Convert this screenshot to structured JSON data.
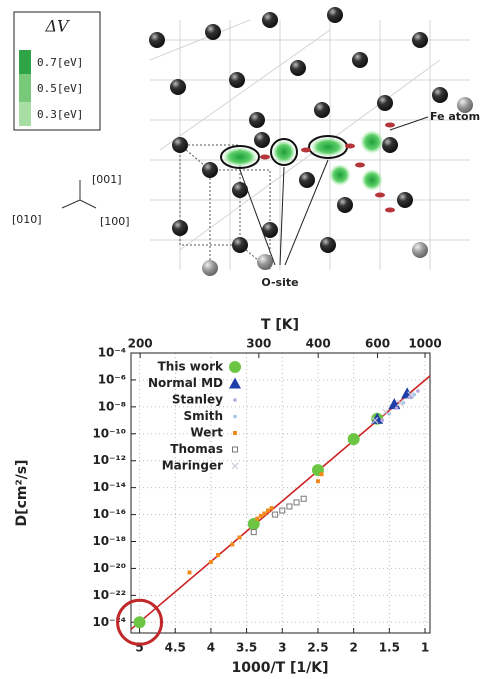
{
  "illustration": {
    "legend_title": "ΔV",
    "legend_labels": [
      "0.7[eV]",
      "0.5[eV]",
      "0.3[eV]"
    ],
    "axis_labels": [
      "[001]",
      "[010]",
      "[100]"
    ],
    "fe_label": "Fe atom",
    "o_label": "O-site"
  },
  "chart_data": {
    "type": "scatter",
    "x_label": "1000/T [1/K]",
    "x2_label": "T [K]",
    "y_label": "D[cm²/s]",
    "xlim": [
      5.12,
      0.93
    ],
    "xticks": [
      5,
      4.5,
      4,
      3.5,
      3,
      2.5,
      2,
      1.5,
      1
    ],
    "x2lim": [
      195,
      1075
    ],
    "x2ticks": [
      200,
      300,
      400,
      600,
      1000
    ],
    "x2scale": "reciprocal",
    "ylim": [
      1.6e-25,
      0.0001
    ],
    "yscale": "log",
    "yticks": [
      {
        "value": 0.0001,
        "label": "10⁻⁴"
      },
      {
        "value": 1e-06,
        "label": "10⁻⁶"
      },
      {
        "value": 1e-08,
        "label": "10⁻⁸"
      },
      {
        "value": 1e-10,
        "label": "10⁻¹⁰"
      },
      {
        "value": 1e-12,
        "label": "10⁻¹²"
      },
      {
        "value": 1e-14,
        "label": "10⁻¹⁴"
      },
      {
        "value": 1e-16,
        "label": "10⁻¹⁶"
      },
      {
        "value": 1e-18,
        "label": "10⁻¹⁸"
      },
      {
        "value": 1e-20,
        "label": "10⁻²⁰"
      },
      {
        "value": 1e-22,
        "label": "10⁻²²"
      },
      {
        "value": 1e-24,
        "label": "10⁻²⁴"
      }
    ],
    "grid": true,
    "legend": "upper left",
    "series": [
      {
        "name": "This work",
        "color": "#6cc644",
        "marker": "circle",
        "x": [
          5,
          3.4,
          2.5,
          2,
          1.67
        ],
        "values": [
          1e-24,
          2e-17,
          2e-13,
          4e-11,
          1.3e-09
        ]
      },
      {
        "name": "Normal MD",
        "color": "#1f3fa8",
        "marker": "triangle",
        "x": [
          1.67,
          1.43,
          1.25
        ],
        "values": [
          1.3e-09,
          1.6e-08,
          1e-07
        ]
      },
      {
        "name": "Stanley",
        "color": "#b9a8e0",
        "marker": "dot",
        "x": [
          1.6,
          1.4,
          1.2,
          1.1
        ],
        "values": [
          1e-09,
          8e-09,
          5e-08,
          1.5e-07
        ]
      },
      {
        "name": "Smith",
        "color": "#a6c8e6",
        "marker": "dot",
        "x": [
          1.5,
          1.3,
          1.15
        ],
        "values": [
          3e-09,
          2e-08,
          8e-08
        ]
      },
      {
        "name": "Wert",
        "color": "#f08a1c",
        "marker": "square",
        "x": [
          4.3,
          4.0,
          3.9,
          3.7,
          3.6,
          3.35,
          3.3,
          3.25,
          3.2,
          3.15,
          2.5,
          2.45
        ],
        "values": [
          5e-21,
          3e-20,
          1e-19,
          6e-19,
          2e-18,
          5e-17,
          8e-17,
          1.2e-16,
          2e-16,
          3e-16,
          3e-14,
          1e-13
        ]
      },
      {
        "name": "Thomas",
        "color": "#777777",
        "marker": "open-square",
        "x": [
          3.4,
          3.1,
          3.0,
          2.9,
          2.8,
          2.7
        ],
        "values": [
          5e-18,
          1e-16,
          2e-16,
          4e-16,
          8e-16,
          1.5e-15
        ]
      },
      {
        "name": "Maringer",
        "color": "#c8c8d8",
        "marker": "x",
        "x": [
          1.7,
          1.55,
          1.35,
          1.2
        ],
        "values": [
          1e-09,
          4e-09,
          2e-08,
          8e-08
        ]
      }
    ],
    "fit_line": {
      "color": "#cc2222",
      "x": [
        5.12,
        0.93
      ],
      "values": [
        3e-25,
        2e-06
      ]
    }
  }
}
